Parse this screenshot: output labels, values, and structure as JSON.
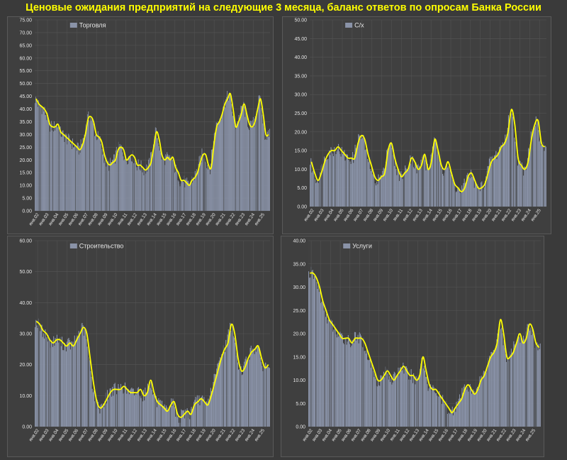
{
  "title": "Ценовые ожидания предприятий на следующие 3 месяца, баланс ответов по опросам Банка России",
  "colors": {
    "bars": "#8a93a8",
    "bars_dark": "#5a5e66",
    "line": "#ffff00",
    "grid": "#555555",
    "text": "#e6e6e6",
    "plot_bg": "#404040"
  },
  "chart_data": [
    {
      "type": "bar",
      "legend": "Торговля",
      "legend_position": "top-left",
      "ylim": [
        0,
        75
      ],
      "ytick_step": 5,
      "ytick_labels": [
        "0.00",
        "5.00",
        "10.00",
        "15.00",
        "20.00",
        "25.00",
        "30.00",
        "35.00",
        "40.00",
        "45.00",
        "50.00",
        "55.00",
        "60.00",
        "65.00",
        "70.00",
        "75.00"
      ],
      "x_labels": [
        "янв.02",
        "янв.03",
        "янв.04",
        "янв.05",
        "янв.06",
        "янв.07",
        "янв.08",
        "янв.09",
        "янв.10",
        "янв.11",
        "янв.12",
        "янв.13",
        "янв.14",
        "янв.15",
        "янв.16",
        "янв.17",
        "янв.18",
        "янв.19",
        "янв.20",
        "янв.21",
        "янв.22",
        "янв.23",
        "янв.24",
        "янв.25"
      ],
      "values": [
        44,
        42,
        41,
        40,
        38,
        34,
        33,
        33,
        34,
        31,
        30,
        29,
        28,
        27,
        26,
        25,
        24,
        26,
        30,
        36,
        37,
        35,
        30,
        29,
        27,
        22,
        19,
        18,
        19,
        20,
        24,
        25,
        24,
        20,
        21,
        22,
        21,
        18,
        18,
        17,
        16,
        17,
        19,
        25,
        31,
        28,
        22,
        20,
        21,
        20,
        21,
        17,
        15,
        12,
        12,
        11,
        10,
        12,
        13,
        15,
        19,
        22,
        22,
        18,
        17,
        26,
        33,
        35,
        38,
        42,
        44,
        46,
        40,
        33,
        35,
        38,
        42,
        38,
        34,
        33,
        35,
        40,
        44,
        38,
        30,
        30
      ]
    },
    {
      "type": "bar",
      "legend": "С/х",
      "legend_position": "top-left",
      "ylim": [
        0,
        50
      ],
      "ytick_step": 5,
      "ytick_labels": [
        "0.00",
        "5.00",
        "10.00",
        "15.00",
        "20.00",
        "25.00",
        "30.00",
        "35.00",
        "40.00",
        "45.00",
        "50.00"
      ],
      "x_labels": [
        "янв.02",
        "янв.03",
        "янв.04",
        "янв.05",
        "янв.06",
        "янв.07",
        "янв.08",
        "янв.09",
        "янв.10",
        "янв.11",
        "янв.12",
        "янв.13",
        "янв.14",
        "янв.15",
        "янв.16",
        "янв.17",
        "янв.18",
        "янв.19",
        "янв.20",
        "янв.21",
        "янв.22",
        "янв.23",
        "янв.24",
        "янв.25"
      ],
      "values": [
        12,
        9,
        7,
        9,
        12,
        14,
        15,
        15,
        16,
        15,
        14,
        13,
        13,
        13,
        17,
        19,
        18,
        14,
        11,
        8,
        7,
        8,
        9,
        15,
        17,
        13,
        10,
        8,
        9,
        10,
        13,
        12,
        10,
        11,
        14,
        10,
        12,
        18,
        15,
        11,
        10,
        12,
        9,
        6,
        5,
        4,
        5,
        8,
        9,
        7,
        5,
        5,
        6,
        9,
        12,
        13,
        14,
        16,
        17,
        20,
        26,
        22,
        13,
        11,
        10,
        12,
        18,
        22,
        23,
        17,
        16
      ]
    },
    {
      "type": "bar",
      "legend": "Строительство",
      "legend_position": "top-left",
      "ylim": [
        0,
        60
      ],
      "ytick_step": 10,
      "ytick_labels": [
        "0.00",
        "10.00",
        "20.00",
        "30.00",
        "40.00",
        "50.00",
        "60.00"
      ],
      "x_labels": [
        "янв.02",
        "янв.03",
        "янв.04",
        "янв.05",
        "янв.06",
        "янв.07",
        "янв.08",
        "янв.09",
        "янв.10",
        "янв.11",
        "янв.12",
        "янв.13",
        "янв.14",
        "янв.15",
        "янв.16",
        "янв.17",
        "янв.18",
        "янв.19",
        "янв.20",
        "янв.21",
        "янв.22",
        "янв.23",
        "янв.24",
        "янв.25"
      ],
      "values": [
        34,
        33,
        31,
        30,
        28,
        27,
        28,
        28,
        27,
        26,
        27,
        26,
        28,
        30,
        32,
        30,
        22,
        14,
        8,
        6,
        7,
        9,
        11,
        12,
        12,
        12,
        13,
        12,
        11,
        11,
        11,
        12,
        10,
        11,
        15,
        11,
        8,
        7,
        6,
        5,
        7,
        8,
        4,
        3,
        4,
        5,
        4,
        7,
        8,
        9,
        8,
        7,
        10,
        14,
        18,
        22,
        25,
        27,
        33,
        30,
        22,
        18,
        19,
        22,
        24,
        25,
        26,
        22,
        19,
        20
      ]
    },
    {
      "type": "bar",
      "legend": "Услуги",
      "legend_position": "top-left",
      "ylim": [
        0,
        40
      ],
      "ytick_step": 5,
      "ytick_labels": [
        "0.00",
        "5.00",
        "10.00",
        "15.00",
        "20.00",
        "25.00",
        "30.00",
        "35.00",
        "40.00"
      ],
      "x_labels": [
        "янв.02",
        "янв.03",
        "янв.04",
        "янв.05",
        "янв.06",
        "янв.07",
        "янв.08",
        "янв.09",
        "янв.10",
        "янв.11",
        "янв.12",
        "янв.13",
        "янв.14",
        "янв.15",
        "янв.16",
        "янв.17",
        "янв.18",
        "янв.19",
        "янв.20",
        "янв.21",
        "янв.22",
        "янв.23",
        "янв.24",
        "янв.25"
      ],
      "values": [
        33,
        33,
        32,
        30,
        27,
        25,
        23,
        22,
        21,
        20,
        19,
        19,
        19,
        18,
        19,
        19,
        19,
        18,
        16,
        14,
        12,
        10,
        10,
        11,
        12,
        11,
        10,
        11,
        12,
        13,
        12,
        11,
        11,
        10,
        11,
        15,
        12,
        9,
        8,
        8,
        7,
        6,
        5,
        4,
        3,
        4,
        5,
        6,
        8,
        9,
        8,
        7,
        8,
        10,
        11,
        13,
        15,
        16,
        18,
        23,
        20,
        15,
        15,
        16,
        18,
        20,
        18,
        19,
        22,
        21,
        18,
        17
      ]
    }
  ]
}
